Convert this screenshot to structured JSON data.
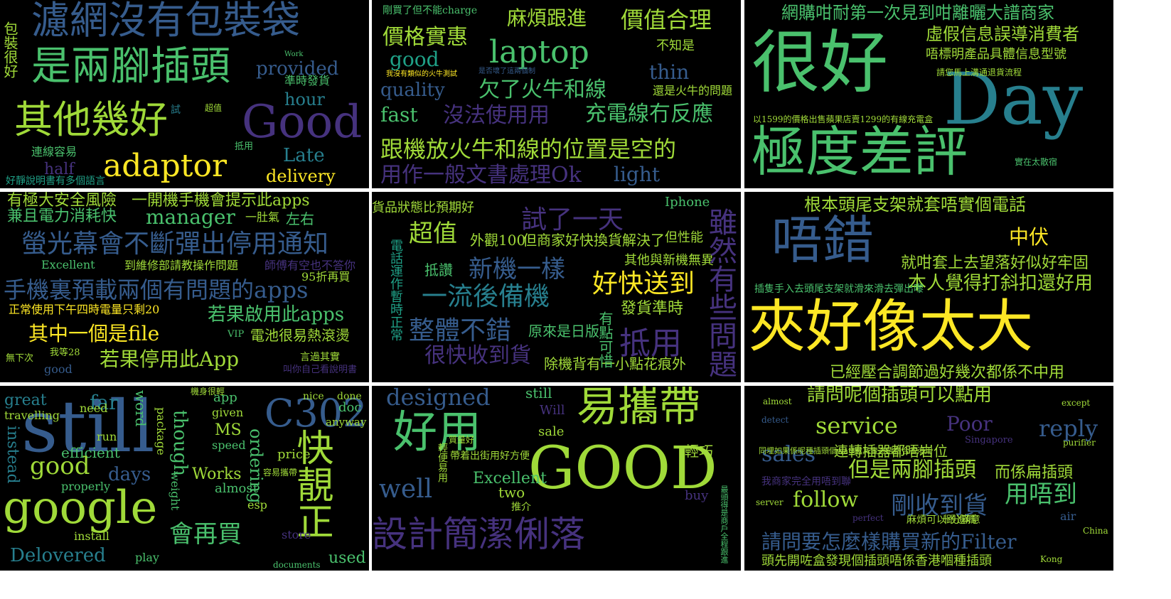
{
  "palette": {
    "background": "#000000",
    "gap": "#ffffff",
    "viridis": [
      "#440154",
      "#46327e",
      "#365c8d",
      "#277f8e",
      "#1fa187",
      "#4ac16d",
      "#a0da39",
      "#fde725"
    ]
  },
  "panels": [
    {
      "words": [
        {
          "text": "濾網沒有包裝袋",
          "c": "#365c8d"
        },
        {
          "text": "是兩腳插頭",
          "c": "#4ac16d"
        },
        {
          "text": "其他幾好",
          "c": "#a0da39"
        },
        {
          "text": "Good",
          "c": "#46327e"
        },
        {
          "text": "adaptor",
          "c": "#fde725"
        },
        {
          "text": "provided",
          "c": "#365c8d"
        },
        {
          "text": "hour",
          "c": "#277f8e"
        },
        {
          "text": "Late",
          "c": "#277f8e"
        },
        {
          "text": "delivery",
          "c": "#fde725"
        },
        {
          "text": "half",
          "c": "#46327e"
        },
        {
          "text": "包裝很好",
          "c": "#a0da39"
        },
        {
          "text": "準時發貨",
          "c": "#4ac16d"
        },
        {
          "text": "連線容易",
          "c": "#4ac16d"
        },
        {
          "text": "好靜說明書有多個語言",
          "c": "#1fa187"
        },
        {
          "text": "試",
          "c": "#277f8e"
        },
        {
          "text": "超值",
          "c": "#a0da39"
        },
        {
          "text": "抵用",
          "c": "#4ac16d"
        },
        {
          "text": "Work",
          "c": "#4ac16d"
        }
      ]
    },
    {
      "words": [
        {
          "text": "剛買了但不能charge",
          "c": "#4ac16d"
        },
        {
          "text": "麻煩跟進",
          "c": "#a0da39"
        },
        {
          "text": "價值合理",
          "c": "#a0da39"
        },
        {
          "text": "價格實惠",
          "c": "#a0da39"
        },
        {
          "text": "laptop",
          "c": "#4ac16d"
        },
        {
          "text": "good",
          "c": "#1fa187"
        },
        {
          "text": "quality",
          "c": "#365c8d"
        },
        {
          "text": "欠了火牛和線",
          "c": "#4ac16d"
        },
        {
          "text": "thin",
          "c": "#365c8d"
        },
        {
          "text": "fast",
          "c": "#4ac16d"
        },
        {
          "text": "沒法使用用",
          "c": "#46327e"
        },
        {
          "text": "充電線冇反應",
          "c": "#4ac16d"
        },
        {
          "text": "跟機放火牛和線的位置是空的",
          "c": "#a0da39"
        },
        {
          "text": "用作一般文書處理Ok",
          "c": "#46327e"
        },
        {
          "text": "light",
          "c": "#365c8d"
        },
        {
          "text": "不知是",
          "c": "#a0da39"
        },
        {
          "text": "還是火牛的問題",
          "c": "#a0da39"
        },
        {
          "text": "我沒有類似的火牛測試",
          "c": "#fde725"
        },
        {
          "text": "是否壞了這兩個制",
          "c": "#365c8d"
        }
      ]
    },
    {
      "words": [
        {
          "text": "網購咁耐第一次見到咁離曬大譜商家",
          "c": "#4ac16d"
        },
        {
          "text": "很好",
          "c": "#4ac16d"
        },
        {
          "text": "Day",
          "c": "#277f8e"
        },
        {
          "text": "極度差評",
          "c": "#4ac16d"
        },
        {
          "text": "虛假信息誤導消費者",
          "c": "#a0da39"
        },
        {
          "text": "唔標明產品具體信息型號",
          "c": "#a0da39"
        },
        {
          "text": "請您馬上溝通退貨流程",
          "c": "#a0da39"
        },
        {
          "text": "以1599的價格出售蘋果店賣1299的有線充電盒",
          "c": "#a0da39"
        },
        {
          "text": "實在太散宿",
          "c": "#4ac16d"
        }
      ]
    },
    {
      "words": [
        {
          "text": "有極大安全風險",
          "c": "#a0da39"
        },
        {
          "text": "一開機手機會提示此apps",
          "c": "#a0da39"
        },
        {
          "text": "兼且電力消耗快",
          "c": "#4ac16d"
        },
        {
          "text": "manager",
          "c": "#4ac16d"
        },
        {
          "text": "一肚氣",
          "c": "#a0da39"
        },
        {
          "text": "左右",
          "c": "#4ac16d"
        },
        {
          "text": "螢光幕會不斷彈出停用通知",
          "c": "#365c8d"
        },
        {
          "text": "Excellent",
          "c": "#4ac16d"
        },
        {
          "text": "到維修部請教操作問題",
          "c": "#a0da39"
        },
        {
          "text": "師傅有空也不答你",
          "c": "#46327e"
        },
        {
          "text": "95折再買",
          "c": "#a0da39"
        },
        {
          "text": "手機裏預載兩個有問題的apps",
          "c": "#365c8d"
        },
        {
          "text": "正常使用下午四時電量只剩20",
          "c": "#fde725"
        },
        {
          "text": "若果啟用此apps",
          "c": "#4ac16d"
        },
        {
          "text": "其中一個是file",
          "c": "#fde725"
        },
        {
          "text": "VIP",
          "c": "#4ac16d"
        },
        {
          "text": "電池很易熱滾燙",
          "c": "#a0da39"
        },
        {
          "text": "若果停用此App",
          "c": "#a0da39"
        },
        {
          "text": "我等28",
          "c": "#a0da39"
        },
        {
          "text": "言過其實",
          "c": "#a0da39"
        },
        {
          "text": "無下次",
          "c": "#a0da39"
        },
        {
          "text": "good",
          "c": "#365c8d"
        },
        {
          "text": "叫你自己看說明書",
          "c": "#46327e"
        }
      ]
    },
    {
      "words": [
        {
          "text": "貨品狀態比預期好",
          "c": "#a0da39"
        },
        {
          "text": "超值",
          "c": "#a0da39"
        },
        {
          "text": "外觀100",
          "c": "#a0da39"
        },
        {
          "text": "但商家好快換貨解決了",
          "c": "#a0da39"
        },
        {
          "text": "試了一天",
          "c": "#46327e"
        },
        {
          "text": "新機一樣",
          "c": "#365c8d"
        },
        {
          "text": "其他與新機無異",
          "c": "#a0da39"
        },
        {
          "text": "抵讚",
          "c": "#4ac16d"
        },
        {
          "text": "一流後備機",
          "c": "#277f8e"
        },
        {
          "text": "好快送到",
          "c": "#fde725"
        },
        {
          "text": "發貨準時",
          "c": "#a0da39"
        },
        {
          "text": "整體不錯",
          "c": "#365c8d"
        },
        {
          "text": "原來是日版",
          "c": "#4ac16d"
        },
        {
          "text": "很快收到貨",
          "c": "#46327e"
        },
        {
          "text": "抵用",
          "c": "#46327e"
        },
        {
          "text": "除機背有一小點花痕外",
          "c": "#a0da39"
        },
        {
          "text": "雖然有些問題",
          "c": "#46327e"
        },
        {
          "text": "電話運作暫時正常",
          "c": "#1fa187"
        },
        {
          "text": "有點可惜",
          "c": "#4ac16d"
        },
        {
          "text": "Iphone",
          "c": "#4ac16d"
        },
        {
          "text": "但性能",
          "c": "#a0da39"
        }
      ]
    },
    {
      "words": [
        {
          "text": "根本頭尾支架就套唔實個電話",
          "c": "#a0da39"
        },
        {
          "text": "唔錯",
          "c": "#365c8d"
        },
        {
          "text": "中伏",
          "c": "#fde725"
        },
        {
          "text": "就咁套上去望落好似好牢固",
          "c": "#a0da39"
        },
        {
          "text": "本人覺得打斜扣還好用",
          "c": "#a0da39"
        },
        {
          "text": "插隻手入去頭尾支架就滑來滑去彈出嚟",
          "c": "#4ac16d"
        },
        {
          "text": "夾好像太大",
          "c": "#fde725"
        },
        {
          "text": "已經壓合調節過好幾次都係不中用",
          "c": "#a0da39"
        }
      ]
    },
    {
      "words": [
        {
          "text": "still",
          "c": "#365c8d"
        },
        {
          "text": "great",
          "c": "#277f8e"
        },
        {
          "text": "far",
          "c": "#277f8e"
        },
        {
          "text": "word",
          "c": "#4ac16d"
        },
        {
          "text": "app",
          "c": "#4ac16d"
        },
        {
          "text": "travelling",
          "c": "#a0da39"
        },
        {
          "text": "need",
          "c": "#a0da39"
        },
        {
          "text": "given",
          "c": "#a0da39"
        },
        {
          "text": "instead",
          "c": "#277f8e"
        },
        {
          "text": "run",
          "c": "#a0da39"
        },
        {
          "text": "package",
          "c": "#a0da39"
        },
        {
          "text": "though",
          "c": "#4ac16d"
        },
        {
          "text": "MS",
          "c": "#a0da39"
        },
        {
          "text": "speed",
          "c": "#4ac16d"
        },
        {
          "text": "C302",
          "c": "#365c8d"
        },
        {
          "text": "快靚正",
          "c": "#a0da39"
        },
        {
          "text": "nice",
          "c": "#a0da39"
        },
        {
          "text": "done",
          "c": "#a0da39"
        },
        {
          "text": "doc",
          "c": "#4ac16d"
        },
        {
          "text": "anyway",
          "c": "#a0da39"
        },
        {
          "text": "efficient",
          "c": "#4ac16d"
        },
        {
          "text": "ordering",
          "c": "#4ac16d"
        },
        {
          "text": "good",
          "c": "#a0da39"
        },
        {
          "text": "days",
          "c": "#365c8d"
        },
        {
          "text": "Works",
          "c": "#a0da39"
        },
        {
          "text": "price",
          "c": "#a0da39"
        },
        {
          "text": "google",
          "c": "#a0da39"
        },
        {
          "text": "properly",
          "c": "#4ac16d"
        },
        {
          "text": "almost",
          "c": "#4ac16d"
        },
        {
          "text": "weight",
          "c": "#4ac16d"
        },
        {
          "text": "會再買",
          "c": "#4ac16d"
        },
        {
          "text": "esp",
          "c": "#a0da39"
        },
        {
          "text": "install",
          "c": "#a0da39"
        },
        {
          "text": "Delovered",
          "c": "#277f8e"
        },
        {
          "text": "play",
          "c": "#4ac16d"
        },
        {
          "text": "store",
          "c": "#46327e"
        },
        {
          "text": "documents",
          "c": "#4ac16d"
        },
        {
          "text": "used",
          "c": "#4ac16d"
        },
        {
          "text": "容易攜帶",
          "c": "#a0da39"
        },
        {
          "text": "機身很輕",
          "c": "#a0da39"
        }
      ]
    },
    {
      "words": [
        {
          "text": "designed",
          "c": "#365c8d"
        },
        {
          "text": "still",
          "c": "#4ac16d"
        },
        {
          "text": "易攜帶",
          "c": "#a0da39"
        },
        {
          "text": "好用",
          "c": "#4ac16d"
        },
        {
          "text": "Will",
          "c": "#46327e"
        },
        {
          "text": "sale",
          "c": "#a0da39"
        },
        {
          "text": "GOOD",
          "c": "#a0da39"
        },
        {
          "text": "well",
          "c": "#365c8d"
        },
        {
          "text": "Excellent",
          "c": "#4ac16d"
        },
        {
          "text": "two",
          "c": "#a0da39"
        },
        {
          "text": "輕巧",
          "c": "#a0da39"
        },
        {
          "text": "buy",
          "c": "#46327e"
        },
        {
          "text": "帶着出街用好方便",
          "c": "#a0da39"
        },
        {
          "text": "設計簡潔俐落",
          "c": "#46327e"
        },
        {
          "text": "輕便易用",
          "c": "#a0da39"
        },
        {
          "text": "推介",
          "c": "#a0da39"
        },
        {
          "text": "質量好",
          "c": "#a0da39"
        },
        {
          "text": "最頭得是商戶全程跟進",
          "c": "#4ac16d"
        }
      ]
    },
    {
      "words": [
        {
          "text": "almost",
          "c": "#a0da39"
        },
        {
          "text": "請問呢個插頭可以點用",
          "c": "#a0da39"
        },
        {
          "text": "except",
          "c": "#a0da39"
        },
        {
          "text": "detect",
          "c": "#365c8d"
        },
        {
          "text": "service",
          "c": "#a0da39"
        },
        {
          "text": "Poor",
          "c": "#46327e"
        },
        {
          "text": "reply",
          "c": "#365c8d"
        },
        {
          "text": "Singapore",
          "c": "#46327e"
        },
        {
          "text": "purifier",
          "c": "#a0da39"
        },
        {
          "text": "sales",
          "c": "#365c8d"
        },
        {
          "text": "連轉插器都唔岩位",
          "c": "#a0da39"
        },
        {
          "text": "同埋如果係呢種插頭個watt數其實適唔適合香港用",
          "c": "#a0da39"
        },
        {
          "text": "但是兩腳插頭",
          "c": "#a0da39"
        },
        {
          "text": "而係扁插頭",
          "c": "#a0da39"
        },
        {
          "text": "follow",
          "c": "#a0da39"
        },
        {
          "text": "用唔到",
          "c": "#4ac16d"
        },
        {
          "text": "我商家完全用唔到聯",
          "c": "#46327e"
        },
        {
          "text": "剛收到貨",
          "c": "#365c8d"
        },
        {
          "text": "air",
          "c": "#365c8d"
        },
        {
          "text": "麻煩可以跟進嗎",
          "c": "#a0da39"
        },
        {
          "text": "server",
          "c": "#a0da39"
        },
        {
          "text": "十分滿意",
          "c": "#a0da39"
        },
        {
          "text": "perfect",
          "c": "#46327e"
        },
        {
          "text": "China",
          "c": "#a0da39"
        },
        {
          "text": "請問要怎麼樣購買新的Filter",
          "c": "#365c8d"
        },
        {
          "text": "頭先開咗盒發現個插頭唔係香港嗰種插頭",
          "c": "#a0da39"
        },
        {
          "text": "Kong",
          "c": "#a0da39"
        }
      ]
    }
  ]
}
